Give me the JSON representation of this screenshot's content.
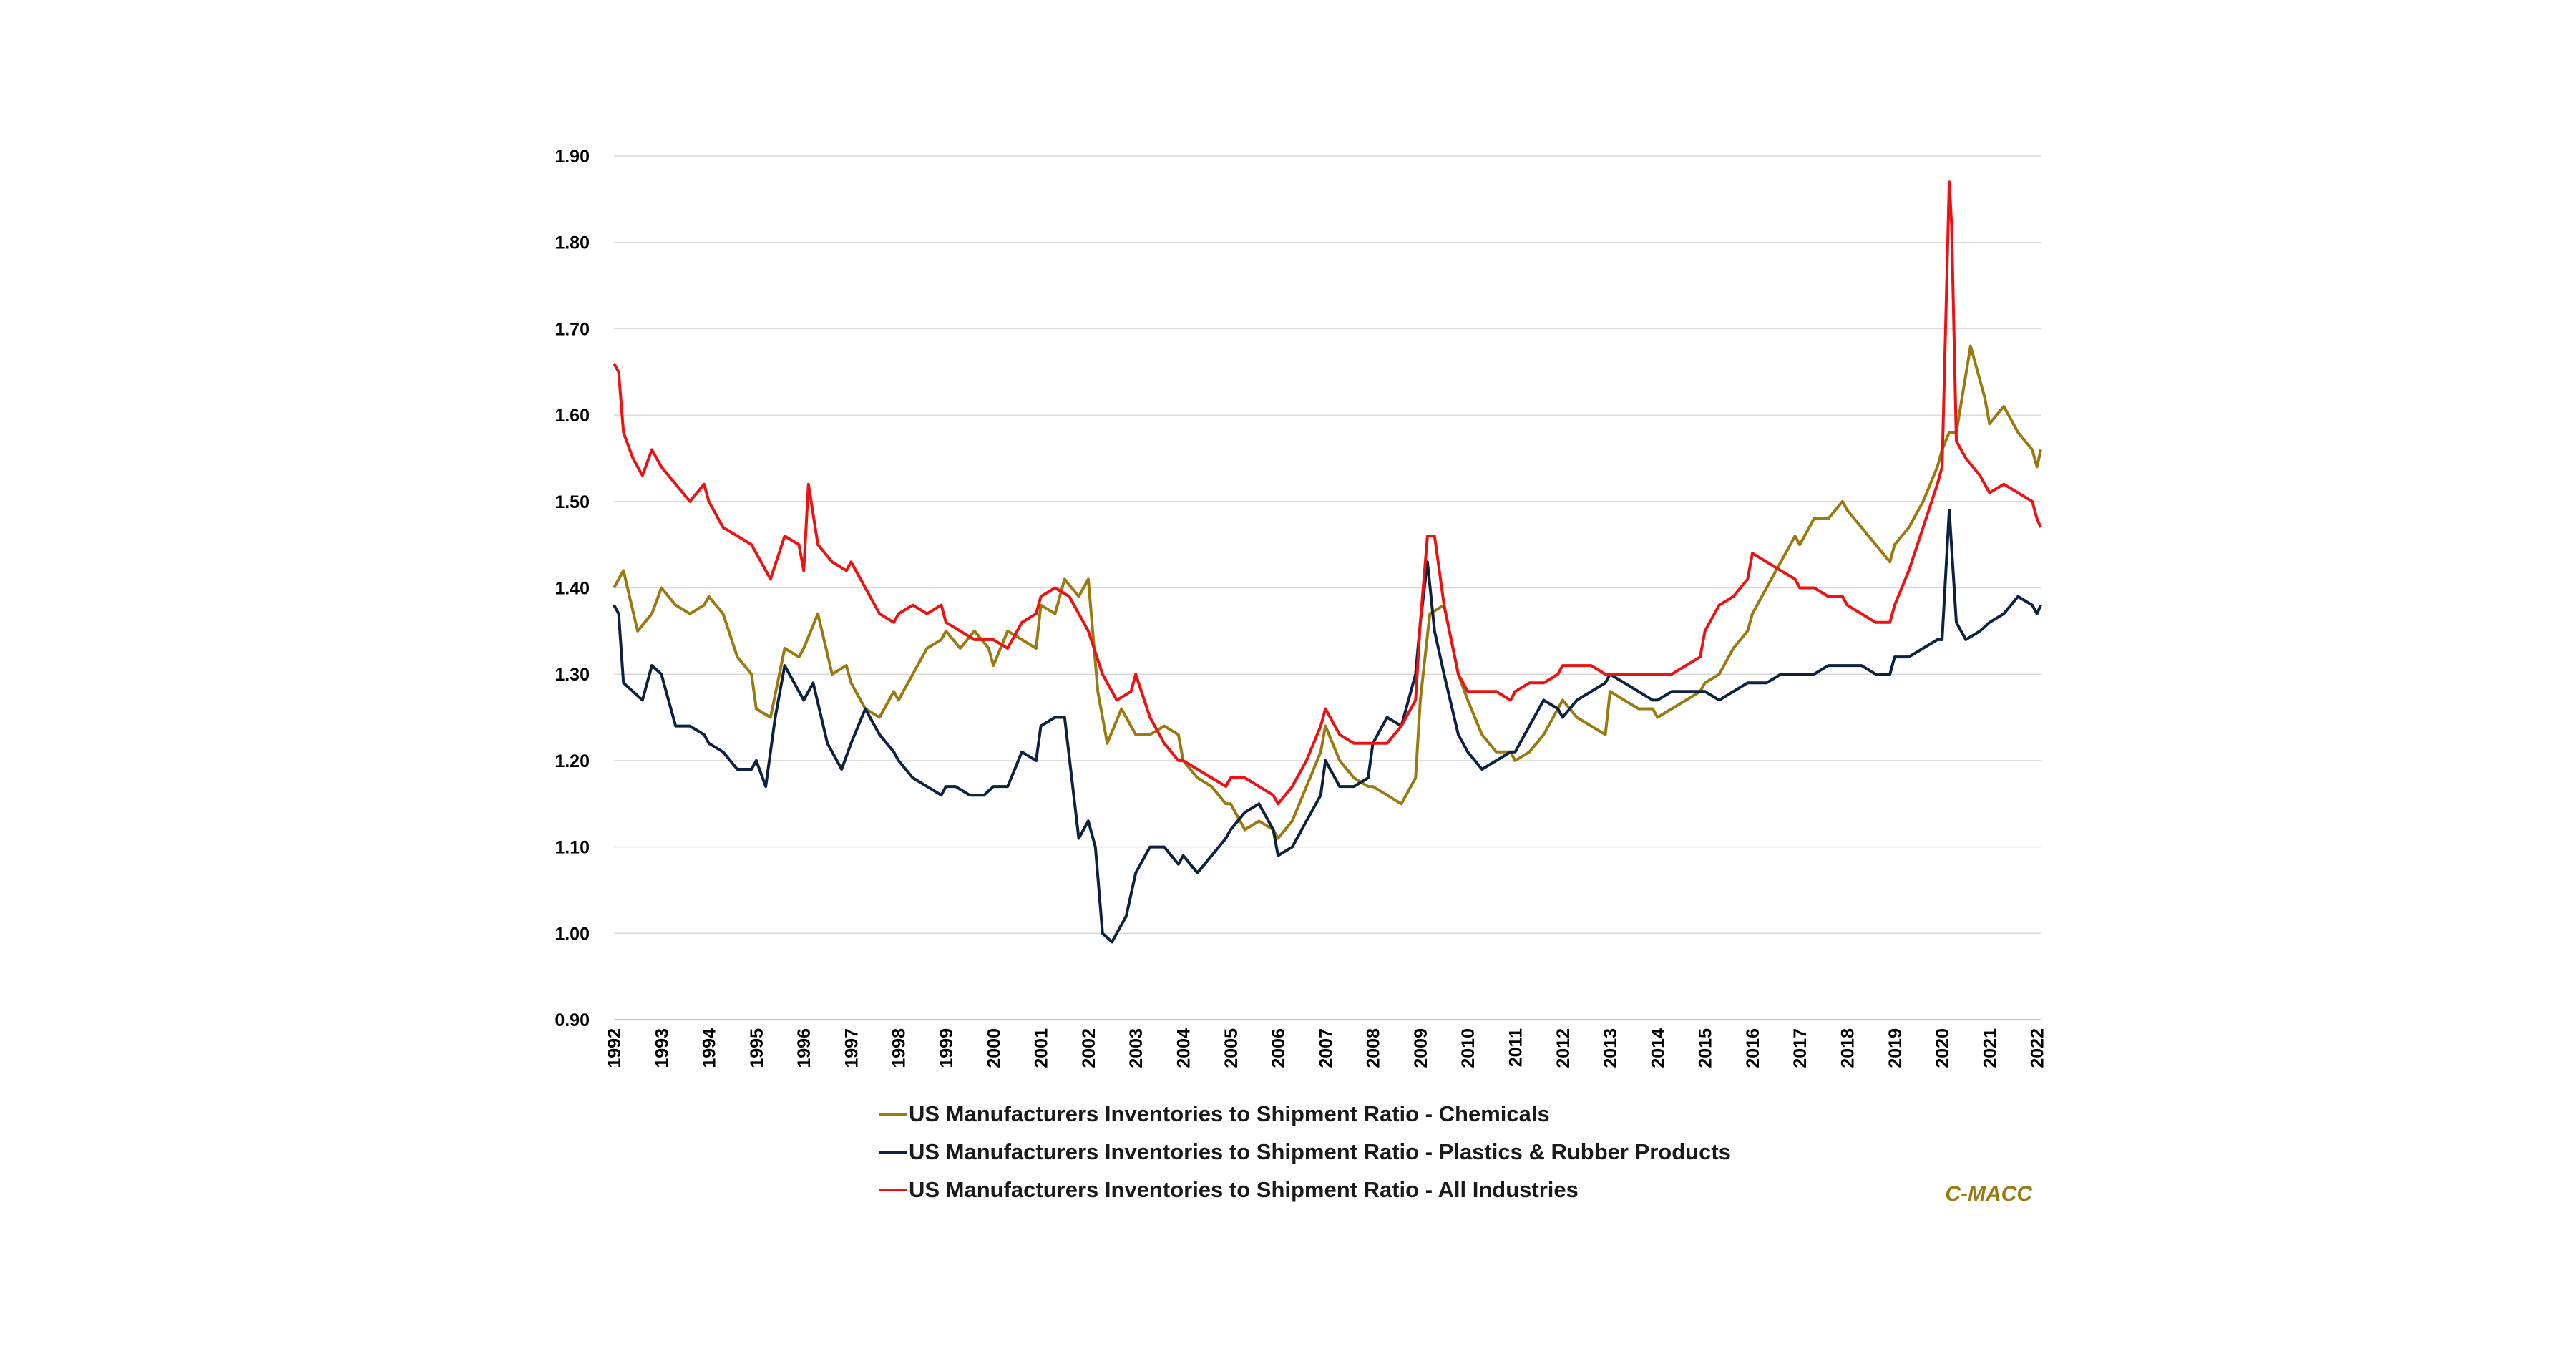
{
  "chart_data": {
    "type": "line",
    "title": "",
    "xlabel": "",
    "ylabel": "",
    "ylim": [
      0.9,
      1.9
    ],
    "xlim": [
      1992.0,
      2022.08
    ],
    "y_ticks": [
      "0.90",
      "1.00",
      "1.10",
      "1.20",
      "1.30",
      "1.40",
      "1.50",
      "1.60",
      "1.70",
      "1.80",
      "1.90"
    ],
    "y_tick_values": [
      0.9,
      1.0,
      1.1,
      1.2,
      1.3,
      1.4,
      1.5,
      1.6,
      1.7,
      1.8,
      1.9
    ],
    "x_ticks": [
      "1992",
      "1993",
      "1994",
      "1995",
      "1996",
      "1997",
      "1998",
      "1999",
      "2000",
      "2001",
      "2002",
      "2003",
      "2004",
      "2005",
      "2006",
      "2007",
      "2008",
      "2009",
      "2010",
      "2011",
      "2012",
      "2013",
      "2014",
      "2015",
      "2016",
      "2017",
      "2018",
      "2019",
      "2020",
      "2021",
      "2022"
    ],
    "grid": "horizontal",
    "legend_position": "bottom",
    "source": "C-MACC",
    "series": [
      {
        "name": "US Manufacturers Inventories to Shipment Ratio - Chemicals",
        "color": "#9a7a10",
        "x": [
          1992.0,
          1992.2,
          1992.5,
          1992.8,
          1993.0,
          1993.3,
          1993.6,
          1993.9,
          1994.0,
          1994.3,
          1994.6,
          1994.9,
          1995.0,
          1995.3,
          1995.6,
          1995.9,
          1996.0,
          1996.3,
          1996.6,
          1996.9,
          1997.0,
          1997.3,
          1997.6,
          1997.9,
          1998.0,
          1998.3,
          1998.6,
          1998.9,
          1999.0,
          1999.3,
          1999.6,
          1999.9,
          2000.0,
          2000.3,
          2000.6,
          2000.9,
          2001.0,
          2001.3,
          2001.5,
          2001.8,
          2002.0,
          2002.2,
          2002.4,
          2002.7,
          2003.0,
          2003.3,
          2003.6,
          2003.9,
          2004.0,
          2004.3,
          2004.6,
          2004.9,
          2005.0,
          2005.3,
          2005.6,
          2005.9,
          2006.0,
          2006.3,
          2006.6,
          2006.9,
          2007.0,
          2007.3,
          2007.6,
          2007.9,
          2008.0,
          2008.3,
          2008.6,
          2008.9,
          2009.0,
          2009.2,
          2009.5,
          2009.8,
          2010.0,
          2010.3,
          2010.6,
          2010.9,
          2011.0,
          2011.3,
          2011.6,
          2011.9,
          2012.0,
          2012.3,
          2012.6,
          2012.9,
          2013.0,
          2013.3,
          2013.6,
          2013.9,
          2014.0,
          2014.3,
          2014.6,
          2014.9,
          2015.0,
          2015.3,
          2015.6,
          2015.9,
          2016.0,
          2016.3,
          2016.6,
          2016.9,
          2017.0,
          2017.3,
          2017.6,
          2017.9,
          2018.0,
          2018.3,
          2018.6,
          2018.9,
          2019.0,
          2019.3,
          2019.6,
          2019.9,
          2020.0,
          2020.15,
          2020.3,
          2020.6,
          2020.9,
          2021.0,
          2021.3,
          2021.6,
          2021.9,
          2022.0,
          2022.08
        ],
        "values": [
          1.4,
          1.42,
          1.35,
          1.37,
          1.4,
          1.38,
          1.37,
          1.38,
          1.39,
          1.37,
          1.32,
          1.3,
          1.26,
          1.25,
          1.33,
          1.32,
          1.33,
          1.37,
          1.3,
          1.31,
          1.29,
          1.26,
          1.25,
          1.28,
          1.27,
          1.3,
          1.33,
          1.34,
          1.35,
          1.33,
          1.35,
          1.33,
          1.31,
          1.35,
          1.34,
          1.33,
          1.38,
          1.37,
          1.41,
          1.39,
          1.41,
          1.28,
          1.22,
          1.26,
          1.23,
          1.23,
          1.24,
          1.23,
          1.2,
          1.18,
          1.17,
          1.15,
          1.15,
          1.12,
          1.13,
          1.12,
          1.11,
          1.13,
          1.17,
          1.21,
          1.24,
          1.2,
          1.18,
          1.17,
          1.17,
          1.16,
          1.15,
          1.18,
          1.27,
          1.37,
          1.38,
          1.3,
          1.27,
          1.23,
          1.21,
          1.21,
          1.2,
          1.21,
          1.23,
          1.26,
          1.27,
          1.25,
          1.24,
          1.23,
          1.28,
          1.27,
          1.26,
          1.26,
          1.25,
          1.26,
          1.27,
          1.28,
          1.29,
          1.3,
          1.33,
          1.35,
          1.37,
          1.4,
          1.43,
          1.46,
          1.45,
          1.48,
          1.48,
          1.5,
          1.49,
          1.47,
          1.45,
          1.43,
          1.45,
          1.47,
          1.5,
          1.54,
          1.56,
          1.58,
          1.58,
          1.68,
          1.62,
          1.59,
          1.61,
          1.58,
          1.56,
          1.54,
          1.56
        ]
      },
      {
        "name": "US Manufacturers Inventories to Shipment Ratio - Plastics & Rubber Products",
        "color": "#0d2240",
        "x": [
          1992.0,
          1992.1,
          1992.2,
          1992.4,
          1992.6,
          1992.8,
          1993.0,
          1993.3,
          1993.6,
          1993.9,
          1994.0,
          1994.3,
          1994.6,
          1994.9,
          1995.0,
          1995.2,
          1995.4,
          1995.6,
          1995.8,
          1996.0,
          1996.2,
          1996.5,
          1996.8,
          1997.0,
          1997.3,
          1997.6,
          1997.9,
          1998.0,
          1998.3,
          1998.6,
          1998.9,
          1999.0,
          1999.2,
          1999.5,
          1999.8,
          2000.0,
          2000.3,
          2000.6,
          2000.9,
          2001.0,
          2001.3,
          2001.5,
          2001.8,
          2002.0,
          2002.15,
          2002.3,
          2002.5,
          2002.8,
          2003.0,
          2003.3,
          2003.6,
          2003.9,
          2004.0,
          2004.3,
          2004.6,
          2004.9,
          2005.0,
          2005.3,
          2005.6,
          2005.9,
          2006.0,
          2006.3,
          2006.6,
          2006.9,
          2007.0,
          2007.3,
          2007.6,
          2007.9,
          2008.0,
          2008.3,
          2008.6,
          2008.9,
          2009.0,
          2009.15,
          2009.3,
          2009.5,
          2009.8,
          2010.0,
          2010.3,
          2010.6,
          2010.9,
          2011.0,
          2011.3,
          2011.6,
          2011.9,
          2012.0,
          2012.3,
          2012.6,
          2012.9,
          2013.0,
          2013.3,
          2013.6,
          2013.9,
          2014.0,
          2014.3,
          2014.6,
          2014.9,
          2015.0,
          2015.3,
          2015.6,
          2015.9,
          2016.0,
          2016.3,
          2016.6,
          2016.9,
          2017.0,
          2017.3,
          2017.6,
          2017.9,
          2018.0,
          2018.3,
          2018.6,
          2018.9,
          2019.0,
          2019.3,
          2019.6,
          2019.9,
          2020.0,
          2020.15,
          2020.3,
          2020.5,
          2020.8,
          2021.0,
          2021.3,
          2021.6,
          2021.9,
          2022.0,
          2022.08
        ],
        "values": [
          1.38,
          1.37,
          1.29,
          1.28,
          1.27,
          1.31,
          1.3,
          1.24,
          1.24,
          1.23,
          1.22,
          1.21,
          1.19,
          1.19,
          1.2,
          1.17,
          1.25,
          1.31,
          1.29,
          1.27,
          1.29,
          1.22,
          1.19,
          1.22,
          1.26,
          1.23,
          1.21,
          1.2,
          1.18,
          1.17,
          1.16,
          1.17,
          1.17,
          1.16,
          1.16,
          1.17,
          1.17,
          1.21,
          1.2,
          1.24,
          1.25,
          1.25,
          1.11,
          1.13,
          1.1,
          1.0,
          0.99,
          1.02,
          1.07,
          1.1,
          1.1,
          1.08,
          1.09,
          1.07,
          1.09,
          1.11,
          1.12,
          1.14,
          1.15,
          1.12,
          1.09,
          1.1,
          1.13,
          1.16,
          1.2,
          1.17,
          1.17,
          1.18,
          1.22,
          1.25,
          1.24,
          1.3,
          1.36,
          1.43,
          1.35,
          1.3,
          1.23,
          1.21,
          1.19,
          1.2,
          1.21,
          1.21,
          1.24,
          1.27,
          1.26,
          1.25,
          1.27,
          1.28,
          1.29,
          1.3,
          1.29,
          1.28,
          1.27,
          1.27,
          1.28,
          1.28,
          1.28,
          1.28,
          1.27,
          1.28,
          1.29,
          1.29,
          1.29,
          1.3,
          1.3,
          1.3,
          1.3,
          1.31,
          1.31,
          1.31,
          1.31,
          1.3,
          1.3,
          1.32,
          1.32,
          1.33,
          1.34,
          1.34,
          1.49,
          1.36,
          1.34,
          1.35,
          1.36,
          1.37,
          1.39,
          1.38,
          1.37,
          1.38
        ]
      },
      {
        "name": "US Manufacturers Inventories to Shipment Ratio - All Industries",
        "color": "#ee1111",
        "x": [
          1992.0,
          1992.1,
          1992.2,
          1992.4,
          1992.6,
          1992.8,
          1993.0,
          1993.3,
          1993.6,
          1993.9,
          1994.0,
          1994.3,
          1994.6,
          1994.9,
          1995.0,
          1995.3,
          1995.6,
          1995.9,
          1996.0,
          1996.1,
          1996.3,
          1996.6,
          1996.9,
          1997.0,
          1997.3,
          1997.6,
          1997.9,
          1998.0,
          1998.3,
          1998.6,
          1998.9,
          1999.0,
          1999.3,
          1999.6,
          1999.9,
          2000.0,
          2000.3,
          2000.6,
          2000.9,
          2001.0,
          2001.3,
          2001.6,
          2001.9,
          2002.0,
          2002.3,
          2002.6,
          2002.9,
          2003.0,
          2003.3,
          2003.6,
          2003.9,
          2004.0,
          2004.3,
          2004.6,
          2004.9,
          2005.0,
          2005.3,
          2005.6,
          2005.9,
          2006.0,
          2006.3,
          2006.6,
          2006.9,
          2007.0,
          2007.3,
          2007.6,
          2007.9,
          2008.0,
          2008.3,
          2008.6,
          2008.9,
          2009.0,
          2009.15,
          2009.3,
          2009.5,
          2009.8,
          2010.0,
          2010.3,
          2010.6,
          2010.9,
          2011.0,
          2011.3,
          2011.6,
          2011.9,
          2012.0,
          2012.3,
          2012.6,
          2012.9,
          2013.0,
          2013.3,
          2013.6,
          2013.9,
          2014.0,
          2014.3,
          2014.6,
          2014.9,
          2015.0,
          2015.3,
          2015.6,
          2015.9,
          2016.0,
          2016.3,
          2016.6,
          2016.9,
          2017.0,
          2017.3,
          2017.6,
          2017.9,
          2018.0,
          2018.3,
          2018.6,
          2018.9,
          2019.0,
          2019.3,
          2019.6,
          2019.9,
          2020.0,
          2020.15,
          2020.2,
          2020.3,
          2020.5,
          2020.8,
          2021.0,
          2021.3,
          2021.6,
          2021.9,
          2022.0,
          2022.08
        ],
        "values": [
          1.66,
          1.65,
          1.58,
          1.55,
          1.53,
          1.56,
          1.54,
          1.52,
          1.5,
          1.52,
          1.5,
          1.47,
          1.46,
          1.45,
          1.44,
          1.41,
          1.46,
          1.45,
          1.42,
          1.52,
          1.45,
          1.43,
          1.42,
          1.43,
          1.4,
          1.37,
          1.36,
          1.37,
          1.38,
          1.37,
          1.38,
          1.36,
          1.35,
          1.34,
          1.34,
          1.34,
          1.33,
          1.36,
          1.37,
          1.39,
          1.4,
          1.39,
          1.36,
          1.35,
          1.3,
          1.27,
          1.28,
          1.3,
          1.25,
          1.22,
          1.2,
          1.2,
          1.19,
          1.18,
          1.17,
          1.18,
          1.18,
          1.17,
          1.16,
          1.15,
          1.17,
          1.2,
          1.24,
          1.26,
          1.23,
          1.22,
          1.22,
          1.22,
          1.22,
          1.24,
          1.27,
          1.36,
          1.46,
          1.46,
          1.38,
          1.3,
          1.28,
          1.28,
          1.28,
          1.27,
          1.28,
          1.29,
          1.29,
          1.3,
          1.31,
          1.31,
          1.31,
          1.3,
          1.3,
          1.3,
          1.3,
          1.3,
          1.3,
          1.3,
          1.31,
          1.32,
          1.35,
          1.38,
          1.39,
          1.41,
          1.44,
          1.43,
          1.42,
          1.41,
          1.4,
          1.4,
          1.39,
          1.39,
          1.38,
          1.37,
          1.36,
          1.36,
          1.38,
          1.42,
          1.47,
          1.52,
          1.54,
          1.87,
          1.82,
          1.57,
          1.55,
          1.53,
          1.51,
          1.52,
          1.51,
          1.5,
          1.48,
          1.47
        ]
      }
    ]
  }
}
